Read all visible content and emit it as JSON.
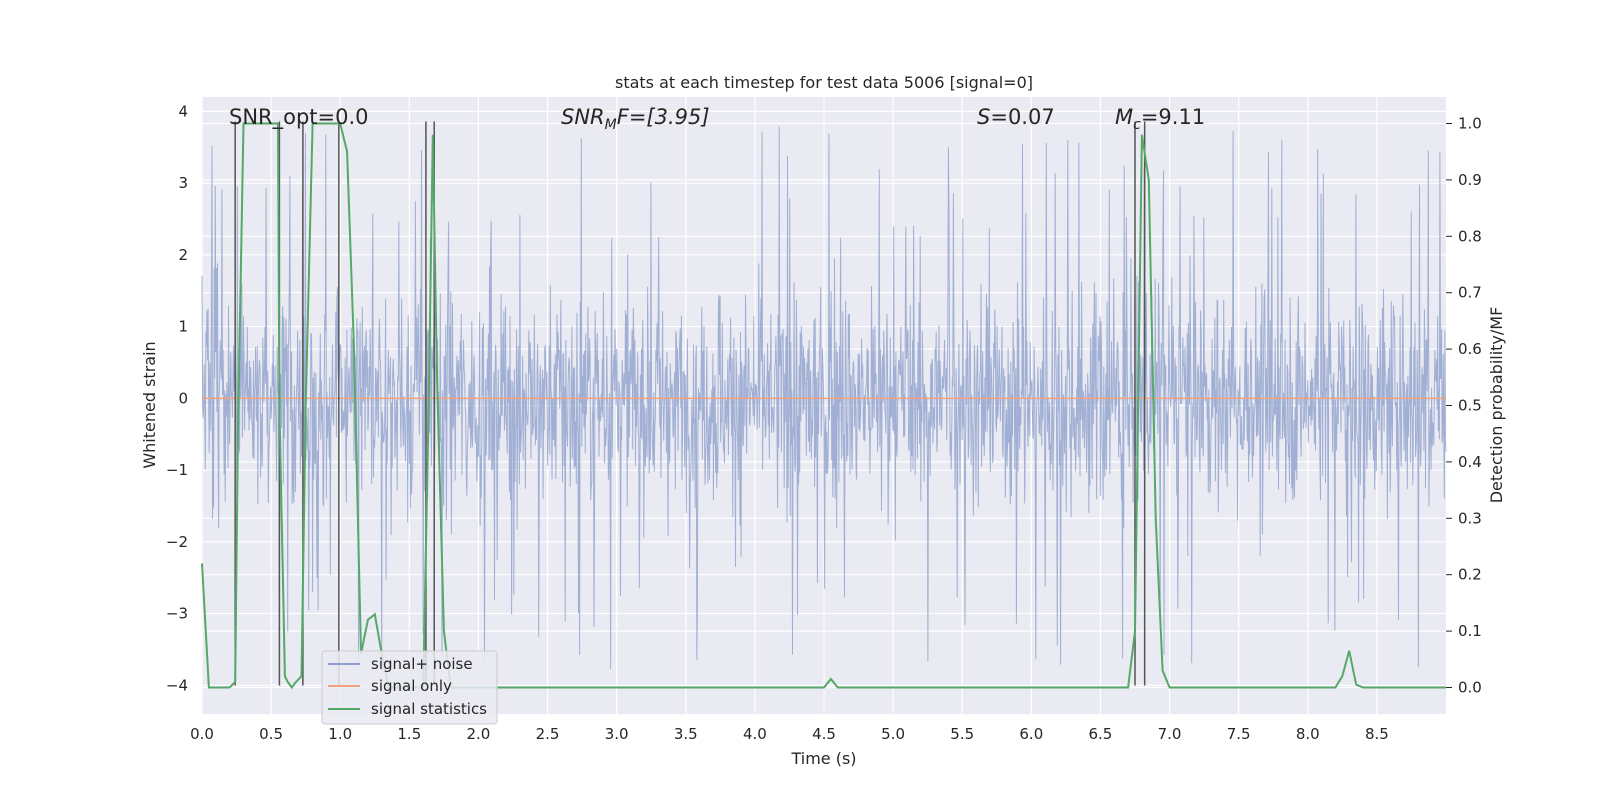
{
  "chart_data": {
    "type": "line",
    "title": "stats at each timestep for test data 5006 [signal=0]",
    "xlabel": "Time (s)",
    "ylabel_left": "Whitened strain",
    "ylabel_right": "Detection probability/MF",
    "xlim": [
      0.0,
      9.0
    ],
    "ylim_left": [
      -4.4,
      4.2
    ],
    "ylim_right": [
      -0.047,
      1.047
    ],
    "x_ticks": [
      "0.0",
      "0.5",
      "1.0",
      "1.5",
      "2.0",
      "2.5",
      "3.0",
      "3.5",
      "4.0",
      "4.5",
      "5.0",
      "5.5",
      "6.0",
      "6.5",
      "7.0",
      "7.5",
      "8.0",
      "8.5"
    ],
    "y_left_ticks": [
      "4",
      "3",
      "2",
      "1",
      "0",
      "−1",
      "−2",
      "−3",
      "−4"
    ],
    "y_right_ticks": [
      "1.0",
      "0.9",
      "0.8",
      "0.7",
      "0.6",
      "0.5",
      "0.4",
      "0.3",
      "0.2",
      "0.1",
      "0.0"
    ],
    "grid": true,
    "legend_position": "lower-left",
    "annotations": {
      "snr_opt": "SNR_opt=0.0",
      "snr_mf_base": "SNR",
      "snr_mf_sub": "M",
      "snr_mf_rest": "F=[3.95]",
      "s_italic": "S",
      "s_rest": "=0.07",
      "mc_base": "M",
      "mc_sub": "c",
      "mc_rest": "=9.11"
    },
    "series": [
      {
        "name": "signal+ noise",
        "color": "#8da0cb",
        "style": "dense noise, approx. ±1.5 typical with spikes to ±3.9",
        "sample_step": 0.004,
        "envelope_typical": 1.5
      },
      {
        "name": "signal only",
        "color": "#f0a27f",
        "x": [
          0.0,
          9.0
        ],
        "y": [
          0.0,
          0.0
        ]
      },
      {
        "name": "signal statistics",
        "color": "#55a868",
        "axis": "right",
        "x": [
          0.0,
          0.05,
          0.1,
          0.15,
          0.2,
          0.24,
          0.26,
          0.3,
          0.35,
          0.4,
          0.45,
          0.5,
          0.55,
          0.56,
          0.6,
          0.62,
          0.65,
          0.68,
          0.72,
          0.75,
          0.8,
          0.85,
          0.9,
          0.95,
          1.0,
          1.05,
          1.1,
          1.15,
          1.2,
          1.25,
          1.3,
          1.35,
          1.4,
          1.45,
          1.5,
          1.55,
          1.6,
          1.64,
          1.67,
          1.7,
          1.75,
          1.8,
          1.85,
          2.0,
          3.0,
          4.0,
          4.5,
          4.55,
          4.6,
          5.0,
          6.0,
          6.5,
          6.7,
          6.75,
          6.8,
          6.85,
          6.9,
          6.95,
          7.0,
          7.5,
          7.8,
          8.0,
          8.2,
          8.25,
          8.3,
          8.35,
          8.4,
          8.5,
          8.9,
          9.0
        ],
        "y": [
          0.22,
          0.0,
          0.0,
          0.0,
          0.0,
          0.01,
          0.45,
          1.0,
          1.0,
          1.0,
          1.0,
          1.0,
          1.0,
          0.5,
          0.02,
          0.01,
          0.0,
          0.01,
          0.02,
          0.5,
          1.0,
          1.0,
          1.0,
          1.0,
          1.0,
          0.95,
          0.6,
          0.06,
          0.12,
          0.13,
          0.06,
          0.0,
          0.0,
          0.0,
          0.0,
          0.0,
          0.0,
          0.5,
          0.98,
          0.55,
          0.1,
          0.0,
          0.0,
          0.0,
          0.0,
          0.0,
          0.0,
          0.015,
          0.0,
          0.0,
          0.0,
          0.0,
          0.0,
          0.1,
          0.98,
          0.9,
          0.3,
          0.03,
          0.0,
          0.0,
          0.0,
          0.0,
          0.0,
          0.02,
          0.065,
          0.005,
          0.0,
          0.0,
          0.0,
          0.0
        ]
      }
    ],
    "vertical_markers": {
      "color": "#555555",
      "x": [
        0.24,
        0.56,
        0.73,
        0.99,
        1.62,
        1.68,
        6.75,
        6.82
      ]
    }
  }
}
